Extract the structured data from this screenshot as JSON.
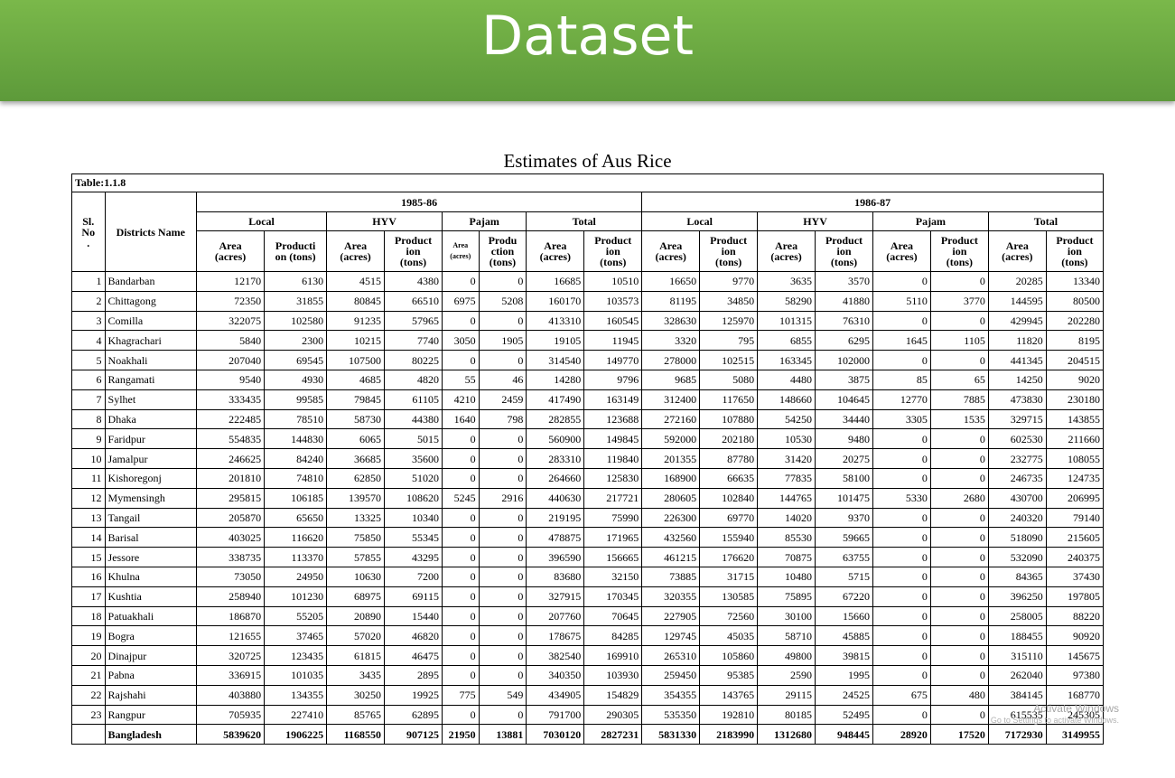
{
  "banner": {
    "title": "Dataset"
  },
  "table": {
    "title": "Estimates of Aus Rice",
    "caption": "Table:1.1.8",
    "sl_header": "Sl.\nNo\n.",
    "name_header": "Districts Name",
    "years": [
      "1985-86",
      "1986-87"
    ],
    "groups": [
      "Local",
      "HYV",
      "Pajam",
      "Total"
    ],
    "subheaders": [
      "Area\n(acres)",
      "Producti\non (tons)",
      "Area\n(acres)",
      "Product\nion\n(tons)",
      "Area\n(acres)",
      "Produ\nction\n(tons)",
      "Area\n(acres)",
      "Product\nion\n(tons)",
      "Area\n(acres)",
      "Product\nion\n(tons)",
      "Area\n(acres)",
      "Product\nion\n(tons)",
      "Area\n(acres)",
      "Product\nion\n(tons)",
      "Area\n(acres)",
      "Product\nion\n(tons)"
    ],
    "rows": [
      {
        "sl": "1",
        "name": "Bandarban",
        "values": [
          "12170",
          "6130",
          "4515",
          "4380",
          "0",
          "0",
          "16685",
          "10510",
          "16650",
          "9770",
          "3635",
          "3570",
          "0",
          "0",
          "20285",
          "13340"
        ]
      },
      {
        "sl": "2",
        "name": "Chittagong",
        "values": [
          "72350",
          "31855",
          "80845",
          "66510",
          "6975",
          "5208",
          "160170",
          "103573",
          "81195",
          "34850",
          "58290",
          "41880",
          "5110",
          "3770",
          "144595",
          "80500"
        ]
      },
      {
        "sl": "3",
        "name": "Comilla",
        "values": [
          "322075",
          "102580",
          "91235",
          "57965",
          "0",
          "0",
          "413310",
          "160545",
          "328630",
          "125970",
          "101315",
          "76310",
          "0",
          "0",
          "429945",
          "202280"
        ]
      },
      {
        "sl": "4",
        "name": "Khagrachari",
        "values": [
          "5840",
          "2300",
          "10215",
          "7740",
          "3050",
          "1905",
          "19105",
          "11945",
          "3320",
          "795",
          "6855",
          "6295",
          "1645",
          "1105",
          "11820",
          "8195"
        ]
      },
      {
        "sl": "5",
        "name": "Noakhali",
        "values": [
          "207040",
          "69545",
          "107500",
          "80225",
          "0",
          "0",
          "314540",
          "149770",
          "278000",
          "102515",
          "163345",
          "102000",
          "0",
          "0",
          "441345",
          "204515"
        ]
      },
      {
        "sl": "6",
        "name": "Rangamati",
        "values": [
          "9540",
          "4930",
          "4685",
          "4820",
          "55",
          "46",
          "14280",
          "9796",
          "9685",
          "5080",
          "4480",
          "3875",
          "85",
          "65",
          "14250",
          "9020"
        ]
      },
      {
        "sl": "7",
        "name": "Sylhet",
        "values": [
          "333435",
          "99585",
          "79845",
          "61105",
          "4210",
          "2459",
          "417490",
          "163149",
          "312400",
          "117650",
          "148660",
          "104645",
          "12770",
          "7885",
          "473830",
          "230180"
        ]
      },
      {
        "sl": "8",
        "name": "Dhaka",
        "values": [
          "222485",
          "78510",
          "58730",
          "44380",
          "1640",
          "798",
          "282855",
          "123688",
          "272160",
          "107880",
          "54250",
          "34440",
          "3305",
          "1535",
          "329715",
          "143855"
        ]
      },
      {
        "sl": "9",
        "name": "Faridpur",
        "values": [
          "554835",
          "144830",
          "6065",
          "5015",
          "0",
          "0",
          "560900",
          "149845",
          "592000",
          "202180",
          "10530",
          "9480",
          "0",
          "0",
          "602530",
          "211660"
        ]
      },
      {
        "sl": "10",
        "name": "Jamalpur",
        "values": [
          "246625",
          "84240",
          "36685",
          "35600",
          "0",
          "0",
          "283310",
          "119840",
          "201355",
          "87780",
          "31420",
          "20275",
          "0",
          "0",
          "232775",
          "108055"
        ]
      },
      {
        "sl": "11",
        "name": "Kishoregonj",
        "values": [
          "201810",
          "74810",
          "62850",
          "51020",
          "0",
          "0",
          "264660",
          "125830",
          "168900",
          "66635",
          "77835",
          "58100",
          "0",
          "0",
          "246735",
          "124735"
        ]
      },
      {
        "sl": "12",
        "name": "Mymensingh",
        "values": [
          "295815",
          "106185",
          "139570",
          "108620",
          "5245",
          "2916",
          "440630",
          "217721",
          "280605",
          "102840",
          "144765",
          "101475",
          "5330",
          "2680",
          "430700",
          "206995"
        ]
      },
      {
        "sl": "13",
        "name": "Tangail",
        "values": [
          "205870",
          "65650",
          "13325",
          "10340",
          "0",
          "0",
          "219195",
          "75990",
          "226300",
          "69770",
          "14020",
          "9370",
          "0",
          "0",
          "240320",
          "79140"
        ]
      },
      {
        "sl": "14",
        "name": "Barisal",
        "values": [
          "403025",
          "116620",
          "75850",
          "55345",
          "0",
          "0",
          "478875",
          "171965",
          "432560",
          "155940",
          "85530",
          "59665",
          "0",
          "0",
          "518090",
          "215605"
        ]
      },
      {
        "sl": "15",
        "name": "Jessore",
        "values": [
          "338735",
          "113370",
          "57855",
          "43295",
          "0",
          "0",
          "396590",
          "156665",
          "461215",
          "176620",
          "70875",
          "63755",
          "0",
          "0",
          "532090",
          "240375"
        ]
      },
      {
        "sl": "16",
        "name": "Khulna",
        "values": [
          "73050",
          "24950",
          "10630",
          "7200",
          "0",
          "0",
          "83680",
          "32150",
          "73885",
          "31715",
          "10480",
          "5715",
          "0",
          "0",
          "84365",
          "37430"
        ]
      },
      {
        "sl": "17",
        "name": "Kushtia",
        "values": [
          "258940",
          "101230",
          "68975",
          "69115",
          "0",
          "0",
          "327915",
          "170345",
          "320355",
          "130585",
          "75895",
          "67220",
          "0",
          "0",
          "396250",
          "197805"
        ]
      },
      {
        "sl": "18",
        "name": "Patuakhali",
        "values": [
          "186870",
          "55205",
          "20890",
          "15440",
          "0",
          "0",
          "207760",
          "70645",
          "227905",
          "72560",
          "30100",
          "15660",
          "0",
          "0",
          "258005",
          "88220"
        ]
      },
      {
        "sl": "19",
        "name": "Bogra",
        "values": [
          "121655",
          "37465",
          "57020",
          "46820",
          "0",
          "0",
          "178675",
          "84285",
          "129745",
          "45035",
          "58710",
          "45885",
          "0",
          "0",
          "188455",
          "90920"
        ]
      },
      {
        "sl": "20",
        "name": "Dinajpur",
        "values": [
          "320725",
          "123435",
          "61815",
          "46475",
          "0",
          "0",
          "382540",
          "169910",
          "265310",
          "105860",
          "49800",
          "39815",
          "0",
          "0",
          "315110",
          "145675"
        ]
      },
      {
        "sl": "21",
        "name": "Pabna",
        "values": [
          "336915",
          "101035",
          "3435",
          "2895",
          "0",
          "0",
          "340350",
          "103930",
          "259450",
          "95385",
          "2590",
          "1995",
          "0",
          "0",
          "262040",
          "97380"
        ]
      },
      {
        "sl": "22",
        "name": "Rajshahi",
        "values": [
          "403880",
          "134355",
          "30250",
          "19925",
          "775",
          "549",
          "434905",
          "154829",
          "354355",
          "143765",
          "29115",
          "24525",
          "675",
          "480",
          "384145",
          "168770"
        ]
      },
      {
        "sl": "23",
        "name": "Rangpur",
        "values": [
          "705935",
          "227410",
          "85765",
          "62895",
          "0",
          "0",
          "791700",
          "290305",
          "535350",
          "192810",
          "80185",
          "52495",
          "0",
          "0",
          "615535",
          "245305"
        ]
      }
    ],
    "total_row": {
      "sl": "",
      "name": "Bangladesh",
      "values": [
        "5839620",
        "1906225",
        "1168550",
        "907125",
        "21950",
        "13881",
        "7030120",
        "2827231",
        "5831330",
        "2183990",
        "1312680",
        "948445",
        "28920",
        "17520",
        "7172930",
        "3149955"
      ]
    }
  },
  "watermark": {
    "line1": "Activate Windows",
    "line2": "Go to Settings to activate Windows."
  }
}
